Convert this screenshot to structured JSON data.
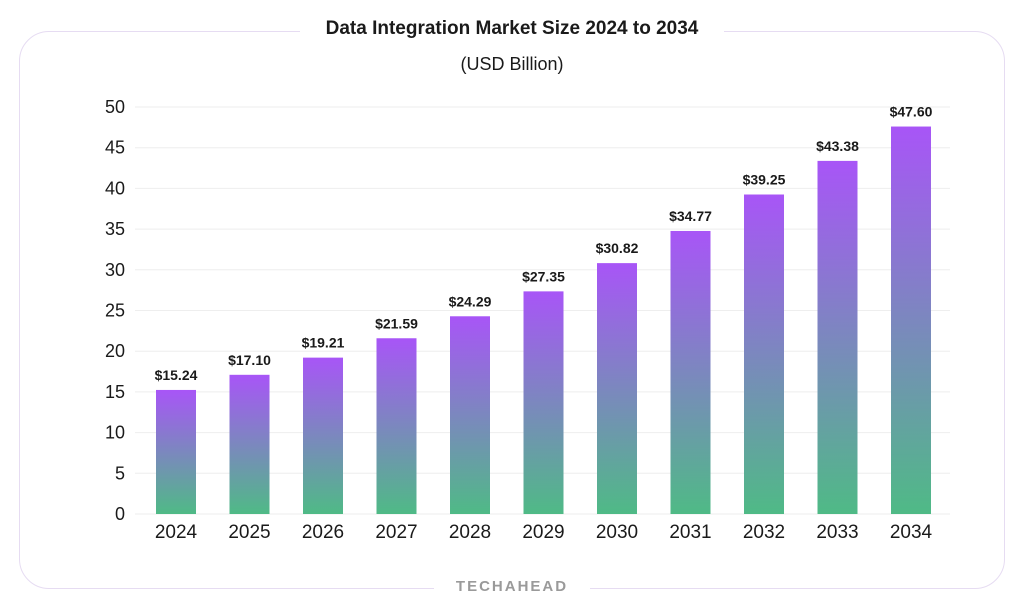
{
  "header": {
    "title": "Data Integration Market Size 2024 to 2034",
    "subtitle": "(USD Billion)"
  },
  "footer": {
    "brand": "TECHAHEAD"
  },
  "colors": {
    "bar_top": "#a855f7",
    "bar_bottom": "#4fba86",
    "grid": "#eeeeee",
    "text": "#1a1a1a"
  },
  "chart_data": {
    "type": "bar",
    "title": "Data Integration Market Size 2024 to 2034",
    "subtitle": "(USD Billion)",
    "categories": [
      "2024",
      "2025",
      "2026",
      "2027",
      "2028",
      "2029",
      "2030",
      "2031",
      "2032",
      "2033",
      "2034"
    ],
    "values": [
      15.24,
      17.1,
      19.21,
      21.59,
      24.29,
      27.35,
      30.82,
      34.77,
      39.25,
      43.38,
      47.6
    ],
    "value_labels": [
      "$15.24",
      "$17.10",
      "$19.21",
      "$21.59",
      "$24.29",
      "$27.35",
      "$30.82",
      "$34.77",
      "$39.25",
      "$43.38",
      "$47.60"
    ],
    "ylim": [
      0,
      50
    ],
    "yticks": [
      "0",
      "5",
      "10",
      "15",
      "20",
      "25",
      "30",
      "35",
      "40",
      "45",
      "50"
    ],
    "xlabel": "",
    "ylabel": "",
    "grid": true,
    "legend": "none"
  }
}
